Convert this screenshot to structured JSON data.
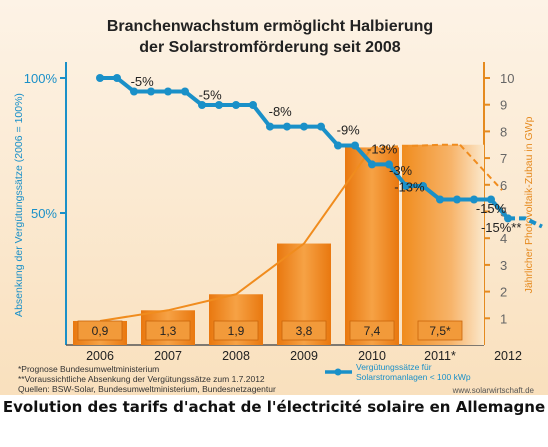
{
  "caption": "Evolution des tarifs d'achat de l'électricité solaire en Allemagne",
  "colors": {
    "bar": "#f08c1e",
    "bar_dark": "#d9720a",
    "line": "#1a90c8",
    "panel": "#fbe8cc",
    "right_axis": "#e58a1f"
  },
  "chart_data": {
    "type": "bar+line",
    "title": [
      "Branchenwachstum ermöglicht Halbierung",
      "der Solarstromförderung seit 2008"
    ],
    "categories": [
      "2006",
      "2007",
      "2008",
      "2009",
      "2010",
      "2011*",
      "2012"
    ],
    "bars": {
      "name": "Jährlicher Photovoltaik-Zubau in GWp",
      "values": [
        0.9,
        1.3,
        1.9,
        3.8,
        7.4,
        7.5
      ],
      "labels": [
        "0,9",
        "1,3",
        "1,9",
        "3,8",
        "7,4",
        "7,5*"
      ]
    },
    "bar_trend": {
      "x": [
        2006,
        2007,
        2008,
        2009,
        2010,
        2011
      ],
      "y": [
        0.9,
        1.3,
        1.9,
        3.8,
        7.4,
        7.5
      ],
      "forecast_from": 2011
    },
    "line": {
      "name": "Vergütungssätze für Solarstromanlagen < 100 kWp",
      "solid": {
        "x": [
          2006,
          2006.25,
          2006.5,
          2006.75,
          2007,
          2007.25,
          2007.5,
          2007.75,
          2008,
          2008.25,
          2008.5,
          2008.75,
          2009,
          2009.25,
          2009.5,
          2009.75,
          2010,
          2010.25,
          2010.5,
          2010.75,
          2011,
          2011.25,
          2011.5,
          2011.75,
          2012
        ],
        "y": [
          100,
          100,
          95,
          95,
          95,
          95,
          90,
          90,
          90,
          90,
          82,
          82,
          82,
          82,
          75,
          75,
          68,
          68,
          60,
          60,
          55,
          55,
          55,
          55,
          48
        ]
      },
      "dashed": {
        "x": [
          2012,
          2012.25,
          2012.5
        ],
        "y": [
          48,
          48,
          45
        ]
      }
    },
    "annotations": [
      {
        "text": "-5%",
        "x": 2006.62,
        "y": 97
      },
      {
        "text": "-5%",
        "x": 2007.62,
        "y": 92
      },
      {
        "text": "-8%",
        "x": 2008.65,
        "y": 86
      },
      {
        "text": "-9%",
        "x": 2009.65,
        "y": 79
      },
      {
        "text": "-13%",
        "x": 2010.15,
        "y": 72
      },
      {
        "text": "-3%",
        "x": 2010.42,
        "y": 64
      },
      {
        "text": "-13%",
        "x": 2010.55,
        "y": 58
      },
      {
        "text": "-15%",
        "x": 2011.75,
        "y": 50
      },
      {
        "text": "-15%**",
        "x": 2011.9,
        "y": 43
      }
    ],
    "y_left": {
      "label": "Absenkung der Vergütungssätze (2006 = 100%)",
      "ticks": [
        100,
        50
      ],
      "tick_labels": [
        "100%",
        "50%"
      ]
    },
    "y_right": {
      "label": "Jährlicher Photovoltaik-Zubau in GWp",
      "range": [
        0,
        10
      ],
      "ticks": [
        1,
        2,
        3,
        4,
        5,
        6,
        7,
        8,
        9,
        10
      ]
    },
    "legend": {
      "label_lines": [
        "Vergütungssätze für",
        "Solarstromanlagen < 100 kWp"
      ],
      "position": "bottom-right"
    },
    "footnotes": [
      "*Prognose Bundesumweltministerium",
      "**Voraussichtliche Absenkung der Vergütungssätze zum 1.7.2012",
      "Quellen: BSW-Solar, Bundesumweltministerium, Bundesnetzagentur"
    ],
    "source_url": "www.solarwirtschaft.de"
  }
}
